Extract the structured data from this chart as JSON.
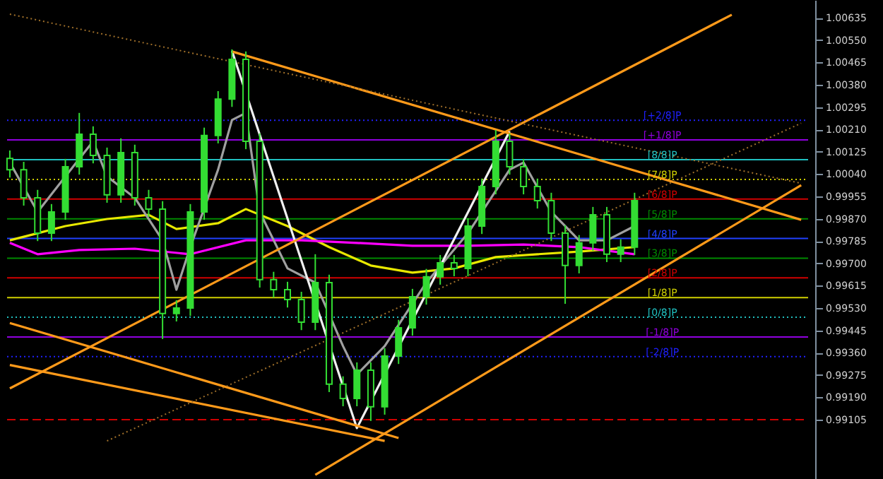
{
  "chart_data": {
    "type": "candlestick",
    "tick_labels": "y",
    "color": "#33dd33",
    "ylim": [
      0.98879,
      1.00703
    ],
    "yticks": [
      0.99105,
      {
        "value": 0.9919,
        "label": "0.99190"
      },
      0.99275,
      {
        "value": 0.9936,
        "label": "0.99360"
      },
      0.99445,
      {
        "value": 0.9953,
        "label": "0.99530"
      },
      0.99615,
      {
        "value": 0.997,
        "label": "0.99700"
      },
      0.99785,
      {
        "value": 0.9987,
        "label": "0.99870"
      },
      0.99955,
      {
        "value": 1.0004,
        "label": "1.00040"
      },
      1.00125,
      {
        "value": 1.0021,
        "label": "1.00210"
      },
      1.00295,
      {
        "value": 1.0038,
        "label": "1.00380"
      },
      1.00465,
      {
        "value": 1.0055,
        "label": "1.00550"
      },
      1.00635
    ],
    "categories": [
      null,
      null,
      null,
      null,
      null,
      null,
      null,
      null,
      null,
      null,
      null,
      null,
      null,
      null,
      null,
      null,
      null,
      null,
      null,
      null,
      null,
      null,
      null,
      null,
      null,
      null,
      null,
      null,
      null,
      null,
      null,
      null,
      null,
      null,
      null,
      null,
      null,
      null,
      null,
      null,
      null,
      null,
      null,
      null,
      null,
      null,
      null,
      null,
      null,
      null,
      null,
      null,
      null,
      null,
      null,
      null,
      null,
      null
    ],
    "ohlc": [
      [
        1.001,
        1.0013,
        1.00027,
        1.00057
      ],
      [
        1.00057,
        1.00087,
        0.9992,
        0.9995
      ],
      [
        0.9995,
        0.9998,
        0.99785,
        0.99815
      ],
      [
        0.99815,
        0.99926,
        0.99785,
        0.99896
      ],
      [
        0.99896,
        1.00098,
        0.99866,
        1.00068
      ],
      [
        1.00068,
        1.00273,
        1.00038,
        1.00192
      ],
      [
        1.00192,
        1.00222,
        1.00081,
        1.00111
      ],
      [
        1.00111,
        1.00141,
        0.99931,
        0.99961
      ],
      [
        0.99961,
        1.00176,
        0.99931,
        1.00122
      ],
      [
        1.00122,
        1.00152,
        0.9992,
        0.9995
      ],
      [
        0.9995,
        0.9998,
        0.99877,
        0.99907
      ],
      [
        0.99907,
        0.99937,
        0.99412,
        0.99509
      ],
      [
        0.99509,
        0.9956,
        0.99479,
        0.9953
      ],
      [
        0.9953,
        0.99926,
        0.995,
        0.99896
      ],
      [
        0.99896,
        1.00217,
        0.99866,
        1.00187
      ],
      [
        1.00187,
        1.00356,
        1.00157,
        1.00326
      ],
      [
        1.00326,
        1.00515,
        1.00296,
        1.00477
      ],
      [
        1.00477,
        1.00507,
        1.00135,
        1.00165
      ],
      [
        1.00165,
        1.00195,
        0.99608,
        0.99638
      ],
      [
        0.99638,
        0.99668,
        0.9957,
        0.996
      ],
      [
        0.996,
        0.9963,
        0.99532,
        0.99562
      ],
      [
        0.99562,
        0.99592,
        0.99446,
        0.99476
      ],
      [
        0.99476,
        0.99735,
        0.99446,
        0.99627
      ],
      [
        0.99627,
        0.99657,
        0.9921,
        0.9924
      ],
      [
        0.9924,
        0.9927,
        0.99156,
        0.99186
      ],
      [
        0.99186,
        0.99323,
        0.99156,
        0.99293
      ],
      [
        0.99293,
        0.99323,
        0.991,
        0.99154
      ],
      [
        0.99154,
        0.99377,
        0.99124,
        0.99347
      ],
      [
        0.99347,
        0.99485,
        0.99317,
        0.99455
      ],
      [
        0.99455,
        0.99603,
        0.99425,
        0.99573
      ],
      [
        0.99573,
        0.99679,
        0.99543,
        0.99649
      ],
      [
        0.99649,
        0.99732,
        0.99619,
        0.99702
      ],
      [
        0.99702,
        0.99732,
        0.99651,
        0.99681
      ],
      [
        0.99681,
        0.99872,
        0.99651,
        0.99842
      ],
      [
        0.99842,
        1.00023,
        0.99812,
        0.99993
      ],
      [
        0.99993,
        1.00208,
        0.99963,
        1.00165
      ],
      [
        1.00165,
        1.00195,
        1.00038,
        1.00068
      ],
      [
        1.00068,
        1.00098,
        0.99963,
        0.99993
      ],
      [
        0.99993,
        1.00023,
        0.99909,
        0.99939
      ],
      [
        0.99939,
        0.99969,
        0.99785,
        0.99815
      ],
      [
        0.99815,
        0.99845,
        0.99546,
        0.99692
      ],
      [
        0.99692,
        0.99808,
        0.99662,
        0.99778
      ],
      [
        0.99778,
        0.99915,
        0.99748,
        0.99885
      ],
      [
        0.99885,
        0.99915,
        0.99705,
        0.99735
      ],
      [
        0.99735,
        0.99792,
        0.99705,
        0.99762
      ],
      [
        0.99762,
        0.99969,
        0.99732,
        0.99939
      ],
      null,
      null,
      null,
      null,
      null,
      null,
      null,
      null,
      null,
      null,
      null,
      null
    ],
    "series": [
      {
        "type": "line",
        "color": "#e8e800",
        "line_style": "solid",
        "values": [
          0.99788,
          null,
          0.99815,
          null,
          0.99842,
          null,
          null,
          0.99869,
          null,
          null,
          0.99885,
          null,
          0.99831,
          null,
          null,
          0.99853,
          null,
          0.99907,
          null,
          null,
          0.99842,
          null,
          null,
          0.99762,
          null,
          null,
          0.99692,
          null,
          null,
          0.99665,
          null,
          null,
          0.99681,
          null,
          null,
          0.99724,
          null,
          null,
          0.99735,
          null,
          null,
          0.99745,
          null,
          null,
          null,
          0.99762,
          null,
          null,
          null,
          null,
          null,
          null,
          null,
          null,
          null,
          null,
          null,
          null
        ]
      },
      {
        "type": "line",
        "color": "#ff00ff",
        "line_style": "solid",
        "values": [
          0.99778,
          null,
          0.99735,
          null,
          null,
          0.99751,
          null,
          null,
          null,
          0.99756,
          null,
          null,
          null,
          0.99735,
          null,
          null,
          null,
          0.99788,
          null,
          null,
          null,
          0.99788,
          null,
          null,
          null,
          0.99778,
          null,
          null,
          null,
          0.99767,
          null,
          null,
          null,
          0.99767,
          null,
          null,
          null,
          0.99772,
          null,
          null,
          null,
          0.99762,
          null,
          null,
          null,
          0.99735,
          null,
          null,
          null,
          null,
          null,
          null,
          null,
          null,
          null,
          null,
          null,
          null
        ]
      },
      {
        "type": "line",
        "color": "#a0a0a0",
        "line_style": "solid",
        "values": [
          1.00084,
          null,
          0.99896,
          null,
          1.00031,
          null,
          1.00165,
          1.00031,
          null,
          0.9995,
          null,
          0.99788,
          0.996,
          0.99762,
          null,
          1.00057,
          1.00246,
          1.00273,
          0.99896,
          null,
          0.99681,
          null,
          0.99627,
          null,
          0.99385,
          0.99277,
          null,
          0.99385,
          null,
          null,
          0.99627,
          null,
          null,
          0.99815,
          null,
          null,
          1.00057,
          1.00084,
          null,
          0.99896,
          null,
          0.99788,
          null,
          0.99788,
          null,
          0.99842,
          null,
          null,
          null,
          null,
          null,
          null,
          null,
          null,
          null,
          null,
          null,
          null
        ]
      },
      {
        "type": "line",
        "color": "#f0f0f0",
        "line_style": "solid",
        "values": [
          null,
          null,
          null,
          null,
          null,
          null,
          null,
          null,
          null,
          null,
          null,
          null,
          null,
          null,
          null,
          null,
          1.00509,
          null,
          null,
          null,
          null,
          null,
          null,
          null,
          null,
          0.99073,
          null,
          null,
          null,
          null,
          null,
          null,
          null,
          null,
          null,
          null,
          1.00203,
          null,
          null,
          null,
          null,
          null,
          null,
          null,
          null,
          null,
          null,
          null,
          null,
          null,
          null,
          null,
          null,
          null,
          null,
          null,
          null,
          null
        ]
      },
      {
        "type": "line",
        "color": "#ff9a1a",
        "line_style": "solid",
        "values": [
          null,
          null,
          null,
          null,
          null,
          null,
          null,
          null,
          null,
          null,
          null,
          null,
          null,
          null,
          null,
          null,
          1.00507,
          null,
          null,
          null,
          null,
          null,
          null,
          null,
          null,
          null,
          null,
          null,
          null,
          null,
          null,
          null,
          null,
          null,
          null,
          null,
          null,
          null,
          null,
          null,
          null,
          null,
          null,
          null,
          null,
          null,
          null,
          null,
          null,
          null,
          null,
          null,
          null,
          null,
          null,
          null,
          null,
          0.99866
        ]
      },
      {
        "type": "line",
        "color": "#ff9a1a",
        "line_style": "solid",
        "values": [
          0.99224,
          null,
          null,
          null,
          null,
          null,
          null,
          null,
          null,
          null,
          null,
          null,
          null,
          null,
          null,
          null,
          null,
          null,
          null,
          null,
          null,
          null,
          null,
          null,
          null,
          null,
          null,
          null,
          null,
          null,
          null,
          null,
          null,
          null,
          null,
          null,
          null,
          null,
          null,
          null,
          null,
          null,
          null,
          null,
          null,
          null,
          null,
          null,
          null,
          null,
          null,
          null,
          1.00647,
          null,
          null,
          null,
          null,
          null
        ]
      },
      {
        "type": "line",
        "color": "#ff9a1a",
        "line_style": "solid",
        "values": [
          null,
          null,
          null,
          null,
          null,
          null,
          null,
          null,
          null,
          null,
          null,
          null,
          null,
          null,
          null,
          null,
          null,
          null,
          null,
          null,
          null,
          null,
          0.98895,
          null,
          null,
          null,
          null,
          null,
          null,
          null,
          null,
          null,
          null,
          null,
          null,
          null,
          null,
          null,
          null,
          null,
          null,
          null,
          null,
          null,
          null,
          null,
          null,
          null,
          null,
          null,
          null,
          null,
          null,
          null,
          null,
          null,
          null,
          0.99998
        ]
      },
      {
        "type": "line",
        "color": "#ff9a1a",
        "line_style": "solid",
        "values": [
          0.99473,
          null,
          null,
          null,
          null,
          null,
          null,
          null,
          null,
          null,
          null,
          null,
          null,
          null,
          null,
          null,
          null,
          null,
          null,
          null,
          null,
          null,
          null,
          null,
          null,
          null,
          null,
          null,
          0.99035,
          null,
          null,
          null,
          null,
          null,
          null,
          null,
          null,
          null,
          null,
          null,
          null,
          null,
          null,
          null,
          null,
          null,
          null,
          null,
          null,
          null,
          null,
          null,
          null,
          null,
          null,
          null,
          null,
          null
        ]
      },
      {
        "type": "line",
        "color": "#ff9a1a",
        "line_style": "solid",
        "values": [
          0.99313,
          null,
          null,
          null,
          null,
          null,
          null,
          null,
          null,
          null,
          null,
          null,
          null,
          null,
          null,
          null,
          null,
          null,
          null,
          null,
          null,
          null,
          null,
          null,
          null,
          null,
          null,
          0.99024,
          null,
          null,
          null,
          null,
          null,
          null,
          null,
          null,
          null,
          null,
          null,
          null,
          null,
          null,
          null,
          null,
          null,
          null,
          null,
          null,
          null,
          null,
          null,
          null,
          null,
          null,
          null,
          null,
          null,
          null
        ]
      },
      {
        "type": "line",
        "color": "#a0702a",
        "line_style": "dotted",
        "values": [
          1.00649,
          null,
          null,
          null,
          null,
          null,
          null,
          null,
          null,
          null,
          null,
          null,
          null,
          null,
          null,
          null,
          null,
          null,
          null,
          null,
          null,
          null,
          null,
          null,
          null,
          null,
          null,
          null,
          null,
          null,
          null,
          null,
          null,
          null,
          null,
          null,
          null,
          null,
          null,
          null,
          null,
          null,
          null,
          null,
          null,
          null,
          null,
          null,
          null,
          null,
          null,
          null,
          null,
          null,
          null,
          null,
          null,
          1.00005
        ]
      },
      {
        "type": "line",
        "color": "#a0702a",
        "line_style": "dotted",
        "values": [
          null,
          null,
          null,
          null,
          null,
          null,
          null,
          0.99024,
          null,
          null,
          null,
          null,
          null,
          null,
          null,
          null,
          null,
          null,
          null,
          null,
          null,
          null,
          null,
          null,
          null,
          null,
          null,
          null,
          null,
          null,
          null,
          null,
          null,
          null,
          null,
          null,
          null,
          null,
          null,
          null,
          null,
          null,
          null,
          null,
          null,
          null,
          null,
          null,
          null,
          null,
          null,
          null,
          null,
          null,
          null,
          null,
          null,
          1.00234
        ]
      }
    ],
    "ref_lines": [
      {
        "axis": "y",
        "value": 1.00245,
        "label": "[+2/8]P",
        "color": "#2020ff",
        "line_style": "dotted"
      },
      {
        "axis": "y",
        "value": 1.0017,
        "label": "[+1/8]P",
        "color": "#9000e0",
        "line_style": "solid"
      },
      {
        "axis": "y",
        "value": 1.00095,
        "label": "[8/8]P",
        "color": "#20c0c0",
        "line_style": "solid"
      },
      {
        "axis": "y",
        "value": 1.0002,
        "label": "[7/8]P",
        "color": "#d0d000",
        "line_style": "dotted"
      },
      {
        "axis": "y",
        "value": 0.99945,
        "label": "[6/8]P",
        "color": "#d00000",
        "line_style": "solid"
      },
      {
        "axis": "y",
        "value": 0.9987,
        "label": "[5/8]P",
        "color": "#008a00",
        "line_style": "solid"
      },
      {
        "axis": "y",
        "value": 0.99795,
        "label": "[4/8]P",
        "color": "#2040ff",
        "line_style": "solid"
      },
      {
        "axis": "y",
        "value": 0.9972,
        "label": "[3/8]P",
        "color": "#008a00",
        "line_style": "solid"
      },
      {
        "axis": "y",
        "value": 0.99645,
        "label": "[2/8]P",
        "color": "#d00000",
        "line_style": "solid"
      },
      {
        "axis": "y",
        "value": 0.9957,
        "label": "[1/8]P",
        "color": "#d0d000",
        "line_style": "solid"
      },
      {
        "axis": "y",
        "value": 0.99495,
        "label": "[0/8]P",
        "color": "#20c0c0",
        "line_style": "dotted"
      },
      {
        "axis": "y",
        "value": 0.9942,
        "label": "[-1/8]P",
        "color": "#9000e0",
        "line_style": "solid"
      },
      {
        "axis": "y",
        "value": 0.99345,
        "label": "[-2/8]P",
        "color": "#2020ff",
        "line_style": "dotted"
      },
      {
        "axis": "y",
        "value": 0.99105,
        "color": "#d00000",
        "line_style": "dashed"
      }
    ]
  }
}
